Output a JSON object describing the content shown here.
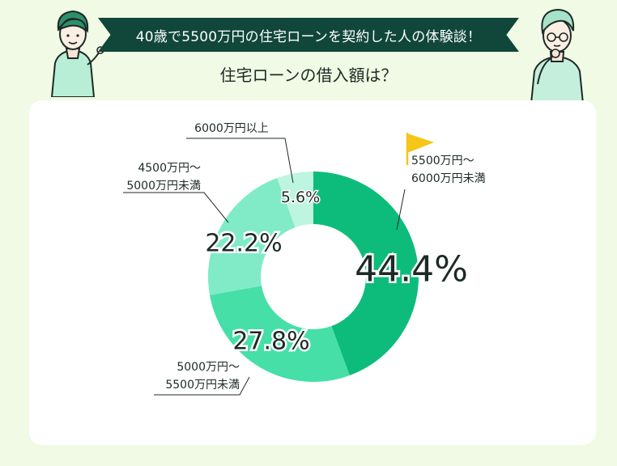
{
  "header": {
    "banner_text": "40歳で5500万円の住宅ローンを契約した人の体験談！",
    "question": "住宅ローンの借入額は？"
  },
  "colors": {
    "background": "#f1fae4",
    "banner": "#10473a",
    "card": "#ffffff",
    "flag": "#f5c518"
  },
  "chart_data": {
    "type": "pie",
    "variant": "donut",
    "unit": "%",
    "series": [
      {
        "label_lines": [
          "5500万円〜",
          "6000万円未満"
        ],
        "value": 44.4,
        "value_text": "44.4%",
        "color": "#0dbc7b",
        "highlight": true
      },
      {
        "label_lines": [
          "5000万円〜",
          "5500万円未満"
        ],
        "value": 27.8,
        "value_text": "27.8%",
        "color": "#45dfa7"
      },
      {
        "label_lines": [
          "4500万円〜",
          "5000万円未満"
        ],
        "value": 22.2,
        "value_text": "22.2%",
        "color": "#80ebc6"
      },
      {
        "label_lines": [
          "6000万円以上"
        ],
        "value": 5.6,
        "value_text": "5.6%",
        "color": "#bdf5e0"
      }
    ]
  }
}
